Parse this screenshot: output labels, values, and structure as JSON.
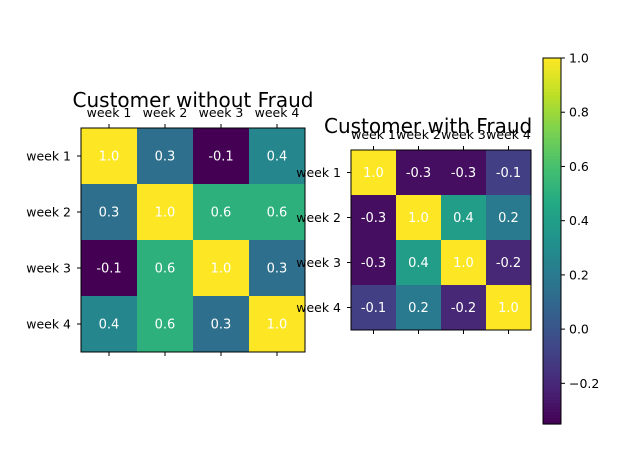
{
  "chart_data": [
    {
      "type": "heatmap",
      "title": "Customer without Fraud",
      "x_labels": [
        "week 1",
        "week 2",
        "week 3",
        "week 4"
      ],
      "y_labels": [
        "week 1",
        "week 2",
        "week 3",
        "week 4"
      ],
      "values": [
        [
          1.0,
          0.3,
          -0.1,
          0.4
        ],
        [
          0.3,
          1.0,
          0.6,
          0.6
        ],
        [
          -0.1,
          0.6,
          1.0,
          0.3
        ],
        [
          0.4,
          0.6,
          0.3,
          1.0
        ]
      ],
      "value_labels": [
        [
          "1.0",
          "0.3",
          "-0.1",
          "0.4"
        ],
        [
          "0.3",
          "1.0",
          "0.6",
          "0.6"
        ],
        [
          "-0.1",
          "0.6",
          "1.0",
          "0.3"
        ],
        [
          "0.4",
          "0.6",
          "0.3",
          "1.0"
        ]
      ],
      "x_ticks_position": "top",
      "colormap": "viridis",
      "vmin": -0.1,
      "vmax": 1.0
    },
    {
      "type": "heatmap",
      "title": "Customer with Fraud",
      "x_labels": [
        "week 1",
        "week 2",
        "week 3",
        "week 4"
      ],
      "y_labels": [
        "week 1",
        "week 2",
        "week 3",
        "week 4"
      ],
      "values": [
        [
          1.0,
          -0.3,
          -0.3,
          -0.1
        ],
        [
          -0.3,
          1.0,
          0.4,
          0.2
        ],
        [
          -0.3,
          0.4,
          1.0,
          -0.2
        ],
        [
          -0.1,
          0.2,
          -0.2,
          1.0
        ]
      ],
      "value_labels": [
        [
          "1.0",
          "-0.3",
          "-0.3",
          "-0.1"
        ],
        [
          "-0.3",
          "1.0",
          "0.4",
          "0.2"
        ],
        [
          "-0.3",
          "0.4",
          "1.0",
          "-0.2"
        ],
        [
          "-0.1",
          "0.2",
          "-0.2",
          "1.0"
        ]
      ],
      "x_ticks_position": "top",
      "colormap": "viridis",
      "vmin": -0.35,
      "vmax": 1.0
    }
  ],
  "colorbar": {
    "colormap": "viridis",
    "range": [
      -0.35,
      1.0
    ],
    "ticks": [
      1.0,
      0.8,
      0.6,
      0.4,
      0.2,
      0.0,
      -0.2
    ],
    "tick_labels": [
      "1.0",
      "0.8",
      "0.6",
      "0.4",
      "0.2",
      "0.0",
      "−0.2"
    ]
  },
  "cell_text_color": "#ffffff"
}
